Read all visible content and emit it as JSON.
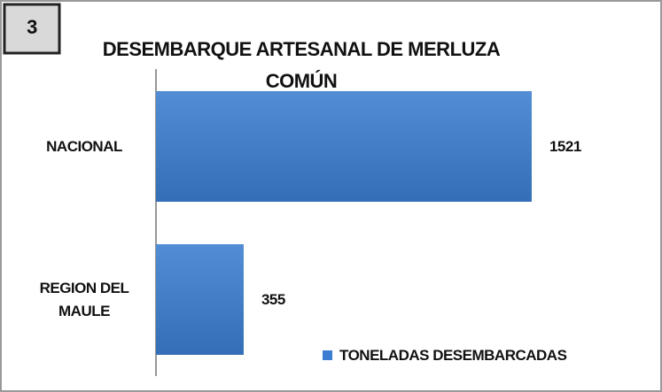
{
  "badge": "3",
  "chart_data": {
    "type": "bar",
    "orientation": "horizontal",
    "title": "DESEMBARQUE ARTESANAL DE MERLUZA COMÚN",
    "categories": [
      "NACIONAL",
      "REGION DEL MAULE"
    ],
    "series": [
      {
        "name": "TONELADAS DESEMBARCADAS",
        "color": "#3b7dd0",
        "values": [
          1521,
          355
        ]
      }
    ],
    "xlim": [
      0,
      1600
    ]
  }
}
